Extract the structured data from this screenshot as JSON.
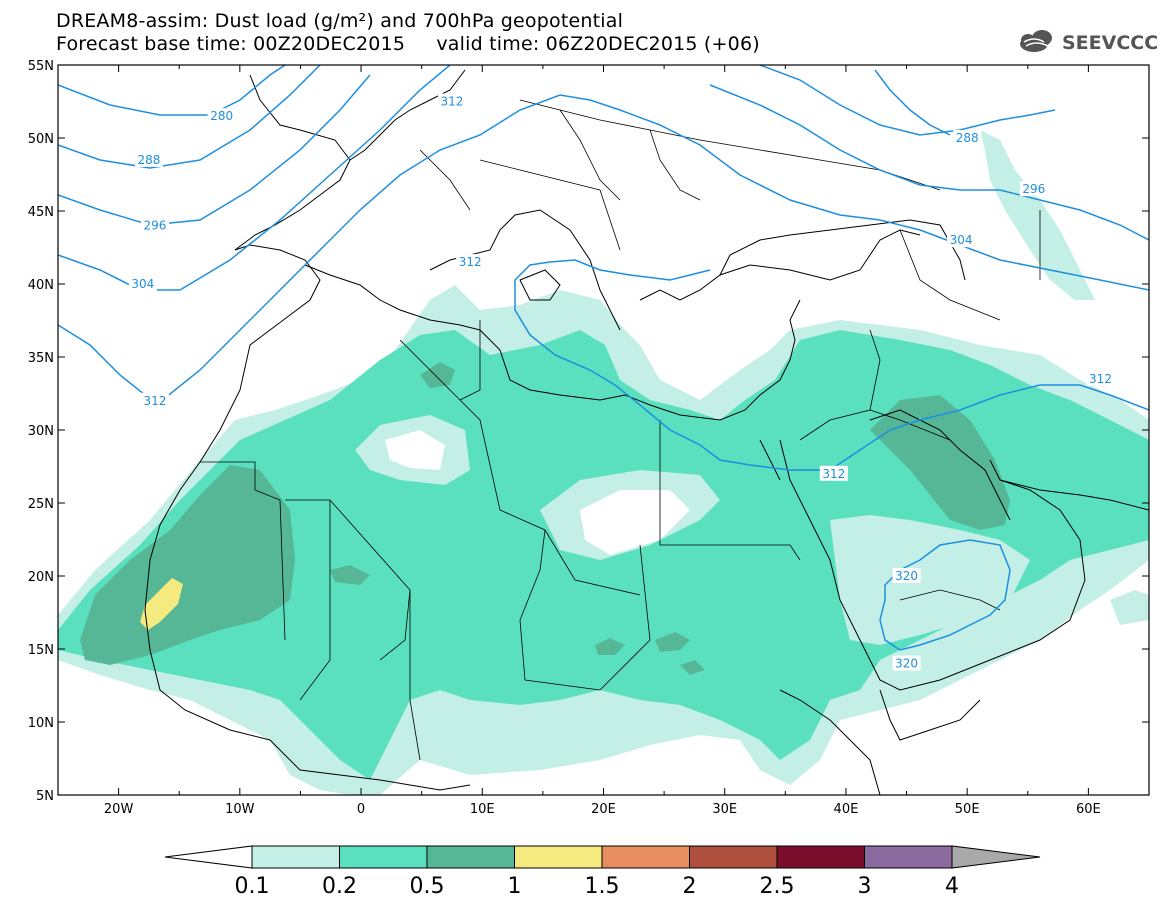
{
  "header": {
    "title_line1": "DREAM8-assim: Dust load (g/m²) and 700hPa geopotential",
    "title_line2": "Forecast base time: 00Z20DEC2015     valid time: 06Z20DEC2015 (+06)",
    "logo_text": "SEEVCCC"
  },
  "map": {
    "lon_range": [
      -25,
      65
    ],
    "lat_range": [
      5,
      55
    ],
    "lon_ticks": [
      {
        "v": -20,
        "label": "20W"
      },
      {
        "v": -10,
        "label": "10W"
      },
      {
        "v": 0,
        "label": "0"
      },
      {
        "v": 10,
        "label": "10E"
      },
      {
        "v": 20,
        "label": "20E"
      },
      {
        "v": 30,
        "label": "30E"
      },
      {
        "v": 40,
        "label": "40E"
      },
      {
        "v": 50,
        "label": "50E"
      },
      {
        "v": 60,
        "label": "60E"
      }
    ],
    "lat_ticks": [
      {
        "v": 55,
        "label": "55N"
      },
      {
        "v": 50,
        "label": "50N"
      },
      {
        "v": 45,
        "label": "45N"
      },
      {
        "v": 40,
        "label": "40N"
      },
      {
        "v": 35,
        "label": "35N"
      },
      {
        "v": 30,
        "label": "30N"
      },
      {
        "v": 25,
        "label": "25N"
      },
      {
        "v": 20,
        "label": "20N"
      },
      {
        "v": 15,
        "label": "15N"
      },
      {
        "v": 10,
        "label": "10N"
      },
      {
        "v": 5,
        "label": "5N"
      }
    ],
    "contour_labels": [
      {
        "text": "280",
        "lon": -11.5,
        "lat": 51.5
      },
      {
        "text": "288",
        "lon": -17.5,
        "lat": 48.5
      },
      {
        "text": "296",
        "lon": -17,
        "lat": 44
      },
      {
        "text": "304",
        "lon": -18,
        "lat": 40
      },
      {
        "text": "312",
        "lon": -17,
        "lat": 32
      },
      {
        "text": "312",
        "lon": 7.5,
        "lat": 52.5
      },
      {
        "text": "312",
        "lon": 9,
        "lat": 41.5
      },
      {
        "text": "312",
        "lon": 39,
        "lat": 27
      },
      {
        "text": "312",
        "lon": 61,
        "lat": 33.5
      },
      {
        "text": "288",
        "lon": 50,
        "lat": 50
      },
      {
        "text": "296",
        "lon": 55.5,
        "lat": 46.5
      },
      {
        "text": "304",
        "lon": 49.5,
        "lat": 43
      },
      {
        "text": "320",
        "lon": 45,
        "lat": 20
      },
      {
        "text": "320",
        "lon": 45,
        "lat": 14
      }
    ]
  },
  "colorbar": {
    "colors": [
      "#ffffff",
      "#c3efe6",
      "#5ae0bf",
      "#55b795",
      "#f4ea80",
      "#e88d60",
      "#ad4f3c",
      "#7a0e2c",
      "#8b6a9f",
      "#a9a9a9"
    ],
    "labels": [
      "0.1",
      "0.2",
      "0.5",
      "1",
      "1.5",
      "2",
      "2.5",
      "3",
      "4"
    ]
  },
  "colors": {
    "contour": "#1e8fe0",
    "coast": "#000000"
  }
}
